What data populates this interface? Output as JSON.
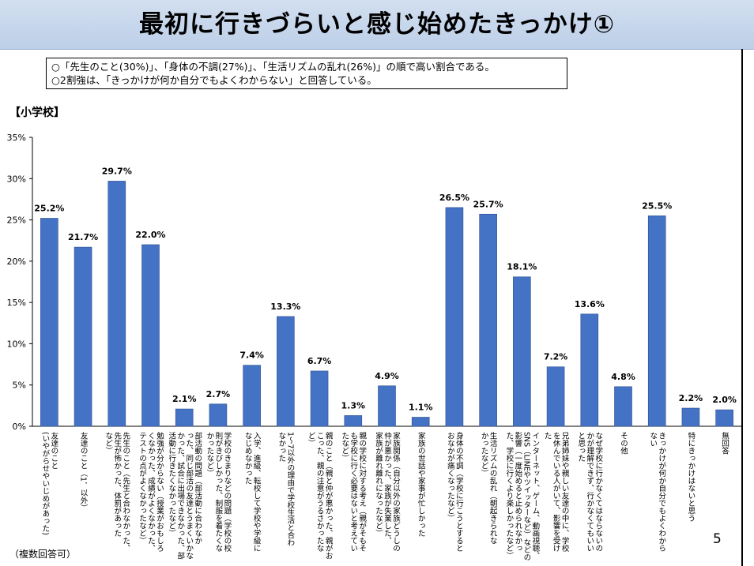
{
  "title": "最初に行きづらいと感じ始めたきっかけ①",
  "summary": [
    "○「先生のこと(30%)」、「身体の不調(27%)」、「生活リズムの乱れ(26%)」の順で高い割合である。",
    "○2割強は、「きっかけが何か自分でもよくわからない」と回答している。"
  ],
  "section_label": "【小学校】",
  "footnote": "（複数回答可）",
  "page_number": "5",
  "chart_data": {
    "type": "bar",
    "ylim": [
      0,
      35
    ],
    "yticks": [
      "0%",
      "5%",
      "10%",
      "15%",
      "20%",
      "25%",
      "30%",
      "35%"
    ],
    "bar_color": "#4472c4",
    "categories": [
      [
        "友達のこと",
        "(いやがらせやいじめがあった)"
      ],
      [
        "友達のこと（1．以外）"
      ],
      [
        "先生のこと（先生と合わなかった、",
        "先生が怖かった、体罰があった",
        "など）"
      ],
      [
        "勉強が分からない（授業がおもしろ",
        "くなかった、成績がよくなかった、",
        "テストの点がよくなかったなど）"
      ],
      [
        "部活動の問題（部活動に合わなか",
        "った、同じ部活の友達とうまくいかな",
        "かった、試合に出場できなかった、部",
        "活動に行きたくなかったなど）"
      ],
      [
        "学校のきまりなどの問題（学校の校",
        "則がきびしかった、制服を着たくな",
        "かったなど）"
      ],
      [
        "入学、進級、転校して学校や学級に",
        "なじめなかった"
      ],
      [
        "1～7以外の理由で学校生活と合わ",
        "なかった"
      ],
      [
        "親のこと（親と仲が悪かった、親がお",
        "こった、親の注意がうるさかったな",
        "ど）"
      ],
      [
        "親の学校に対する考え（親がそもそ",
        "も学校に行く必要はないと考えてい",
        "たなど）"
      ],
      [
        "家族関係（自分以外の家族どうしの",
        "仲が悪かった、家族が失業した、",
        "家族が離れ離れになったなど）"
      ],
      [
        "家族の世話や家事が忙しかった"
      ],
      [
        "身体の不調（学校に行こうとすると",
        "おなかが痛くなったなど）"
      ],
      [
        "生活リズムの乱れ（朝起きられな",
        "かったなど）"
      ],
      [
        "インターネット、ゲーム、動画視聴、",
        "SNS（LINEやツイッターなど）などの",
        "影響（一度始めると止められなかっ",
        "た、学校に行くより楽しかったなど）"
      ],
      [
        "兄弟姉妹や親しい友達の中に、学校",
        "を休んでいる人がいて、影響を受け",
        "た"
      ],
      [
        "なぜ学校に行かなくてはならないの",
        "かが理解できず、行かなくてもいい",
        "と思った"
      ],
      [
        "その他"
      ],
      [
        "きっかけが何か自分でもよくわから",
        "ない"
      ],
      [
        "特にきっかけはないと思う"
      ],
      [
        "無回答"
      ]
    ],
    "values": [
      25.2,
      21.7,
      29.7,
      22.0,
      2.1,
      2.7,
      7.4,
      13.3,
      6.7,
      1.3,
      4.9,
      1.1,
      26.5,
      25.7,
      18.1,
      7.2,
      13.6,
      4.8,
      25.5,
      2.2,
      2.0
    ],
    "labels": [
      "25.2%",
      "21.7%",
      "29.7%",
      "22.0%",
      "2.1%",
      "2.7%",
      "7.4%",
      "13.3%",
      "6.7%",
      "1.3%",
      "4.9%",
      "1.1%",
      "26.5%",
      "25.7%",
      "18.1%",
      "7.2%",
      "13.6%",
      "4.8%",
      "25.5%",
      "2.2%",
      "2.0%"
    ]
  }
}
